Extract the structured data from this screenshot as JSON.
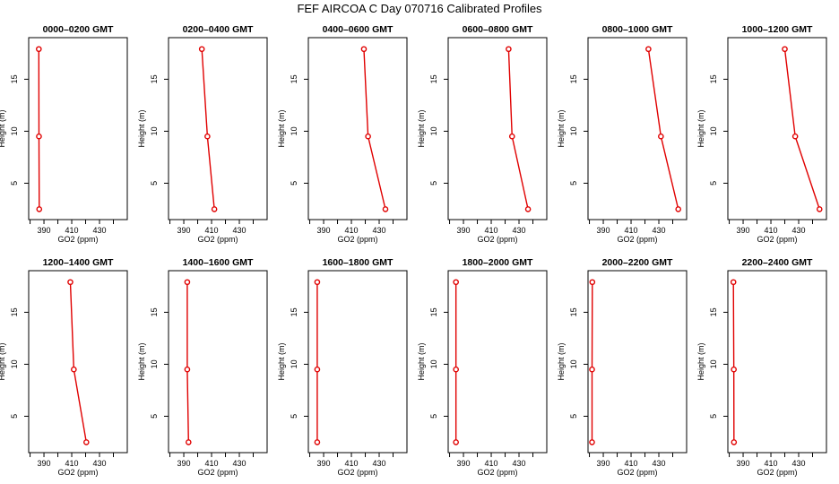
{
  "figure": {
    "title": "FEF AIRCOA C  Day 070716  Calibrated Profiles"
  },
  "chart_data": {
    "type": "line",
    "title": "FEF AIRCOA C  Day 070716  Calibrated Profiles",
    "xlabel": "GO2 (ppm)",
    "ylabel": "Height (m)",
    "xlim": [
      379,
      450
    ],
    "ylim": [
      1.5,
      19
    ],
    "xticks": [
      390,
      410,
      430
    ],
    "yticks": [
      5,
      10,
      15
    ],
    "heights": [
      2.5,
      9.5,
      17.9
    ],
    "panels": [
      {
        "name": "0000–0200 GMT",
        "x": [
          386.6,
          386.4,
          386.3
        ]
      },
      {
        "name": "0200–0400 GMT",
        "x": [
          412.0,
          407.0,
          403.0
        ]
      },
      {
        "name": "0400–0600 GMT",
        "x": [
          434.5,
          422.0,
          419.0
        ]
      },
      {
        "name": "0600–0800 GMT",
        "x": [
          436.5,
          425.0,
          422.5
        ]
      },
      {
        "name": "0800–1000 GMT",
        "x": [
          444.0,
          431.5,
          422.5
        ]
      },
      {
        "name": "1000–1200 GMT",
        "x": [
          445.0,
          427.5,
          420.0
        ]
      },
      {
        "name": "1200–1400 GMT",
        "x": [
          420.5,
          411.5,
          409.0
        ]
      },
      {
        "name": "1400–1600 GMT",
        "x": [
          393.4,
          392.5,
          392.5
        ]
      },
      {
        "name": "1600–1800 GMT",
        "x": [
          385.4,
          385.4,
          385.4
        ]
      },
      {
        "name": "1800–2000 GMT",
        "x": [
          384.6,
          384.6,
          384.6
        ]
      },
      {
        "name": "2000–2200 GMT",
        "x": [
          381.9,
          381.9,
          382.1
        ]
      },
      {
        "name": "2200–2400 GMT",
        "x": [
          383.4,
          383.3,
          383.0
        ]
      }
    ]
  }
}
